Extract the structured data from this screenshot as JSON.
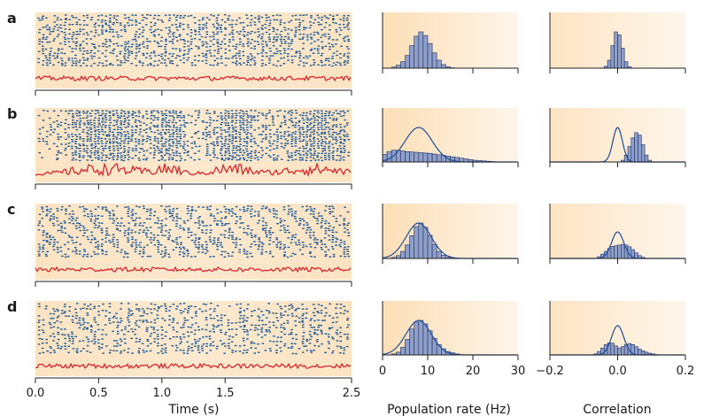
{
  "colors": {
    "spike": "#1d5a9a",
    "rate_trace": "#e0242a",
    "hist_fill": "#8f9fc6",
    "hist_edge": "#1a2f6e",
    "fit_line": "#1d4e98",
    "background_light": "#fdf3e6",
    "background_dark": "#fce0bb",
    "axis": "#222222"
  },
  "panels": [
    {
      "letter": "a"
    },
    {
      "letter": "b"
    },
    {
      "letter": "c"
    },
    {
      "letter": "d"
    }
  ],
  "raster_axis": {
    "xlabel": "Time (s)",
    "xlim": [
      0,
      2.5
    ],
    "ticks": [
      "0.0",
      "0.5",
      "1.0",
      "1.5",
      "2.5"
    ],
    "tick_values": [
      0.0,
      0.5,
      1.0,
      1.5,
      2.5
    ]
  },
  "rate_axis": {
    "xlabel": "Population rate (Hz)",
    "xlim": [
      0,
      30
    ],
    "ticks": [
      "0",
      "10",
      "20",
      "30"
    ],
    "tick_values": [
      0,
      10,
      20,
      30
    ]
  },
  "corr_axis": {
    "xlabel": "Correlation",
    "xlim": [
      -0.2,
      0.2
    ],
    "ticks": [
      "−0.2",
      "0.0",
      "0.2"
    ],
    "tick_values": [
      -0.2,
      0.0,
      0.2
    ]
  },
  "chart_data": [
    {
      "type": "raster",
      "panel": "a",
      "description_key": "asynchronous",
      "time_range_s": [
        0,
        2.5
      ],
      "rate_hist": {
        "type": "bar",
        "bin_width_hz": 1,
        "x": [
          2,
          3,
          4,
          5,
          6,
          7,
          8,
          9,
          10,
          11,
          12,
          13,
          14,
          15
        ],
        "values": [
          0.03,
          0.08,
          0.18,
          0.35,
          0.62,
          0.88,
          1.0,
          0.9,
          0.68,
          0.42,
          0.22,
          0.1,
          0.04,
          0.01
        ],
        "fit": null
      },
      "corr_hist": {
        "type": "bar",
        "x": [
          -0.035,
          -0.025,
          -0.015,
          -0.005,
          0.005,
          0.015,
          0.025,
          0.035
        ],
        "values": [
          0.05,
          0.22,
          0.62,
          1.0,
          0.92,
          0.55,
          0.18,
          0.04
        ],
        "fit": null
      }
    },
    {
      "type": "raster",
      "panel": "b",
      "time_range_s": [
        0,
        2.5
      ],
      "rate_hist": {
        "type": "bar",
        "bin_width_hz": 1,
        "x": [
          0,
          1,
          2,
          3,
          4,
          5,
          6,
          7,
          8,
          9,
          10,
          11,
          12,
          13,
          14,
          15,
          16,
          17,
          18,
          19,
          20,
          21,
          22,
          23,
          24
        ],
        "values": [
          0.22,
          0.3,
          0.34,
          0.34,
          0.32,
          0.3,
          0.29,
          0.28,
          0.27,
          0.26,
          0.25,
          0.23,
          0.21,
          0.19,
          0.17,
          0.15,
          0.13,
          0.11,
          0.09,
          0.07,
          0.05,
          0.04,
          0.03,
          0.02,
          0.01
        ],
        "fit": {
          "mean": 8,
          "sd": 3,
          "peak": 1.0
        }
      },
      "corr_hist": {
        "type": "bar",
        "x": [
          0.015,
          0.025,
          0.035,
          0.045,
          0.055,
          0.065,
          0.075,
          0.085,
          0.095
        ],
        "values": [
          0.05,
          0.2,
          0.45,
          0.7,
          0.85,
          0.78,
          0.5,
          0.2,
          0.05
        ],
        "fit": {
          "mean": 0.0,
          "sd": 0.014,
          "peak": 1.0
        }
      }
    },
    {
      "type": "raster",
      "panel": "c",
      "time_range_s": [
        0,
        2.5
      ],
      "rate_hist": {
        "type": "bar",
        "bin_width_hz": 1,
        "x": [
          2,
          3,
          4,
          5,
          6,
          7,
          8,
          9,
          10,
          11,
          12,
          13,
          14,
          15
        ],
        "values": [
          0.03,
          0.08,
          0.2,
          0.38,
          0.64,
          0.9,
          1.0,
          0.88,
          0.65,
          0.4,
          0.2,
          0.09,
          0.03,
          0.01
        ],
        "fit": {
          "mean": 8,
          "sd": 2.8,
          "peak": 1.0
        }
      },
      "corr_hist": {
        "type": "bar",
        "x": [
          -0.055,
          -0.045,
          -0.035,
          -0.025,
          -0.015,
          -0.005,
          0.005,
          0.015,
          0.025,
          0.035,
          0.045,
          0.055,
          0.065,
          0.075
        ],
        "values": [
          0.05,
          0.12,
          0.2,
          0.28,
          0.34,
          0.36,
          0.38,
          0.4,
          0.38,
          0.33,
          0.25,
          0.16,
          0.08,
          0.03
        ],
        "fit": {
          "mean": 0.0,
          "sd": 0.018,
          "peak": 0.75
        }
      }
    },
    {
      "type": "raster",
      "panel": "d",
      "time_range_s": [
        0,
        2.5
      ],
      "rate_hist": {
        "type": "bar",
        "bin_width_hz": 1,
        "x": [
          2,
          3,
          4,
          5,
          6,
          7,
          8,
          9,
          10,
          11,
          12,
          13,
          14,
          15,
          16,
          17
        ],
        "values": [
          0.03,
          0.08,
          0.22,
          0.45,
          0.75,
          0.95,
          1.0,
          0.9,
          0.7,
          0.48,
          0.3,
          0.18,
          0.1,
          0.06,
          0.03,
          0.01
        ],
        "fit": {
          "mean": 8,
          "sd": 2.8,
          "peak": 1.0
        }
      },
      "corr_hist": {
        "type": "bar",
        "x": [
          -0.065,
          -0.055,
          -0.045,
          -0.035,
          -0.025,
          -0.015,
          -0.005,
          0.005,
          0.015,
          0.025,
          0.035,
          0.045,
          0.055,
          0.065,
          0.075,
          0.085,
          0.095,
          0.105,
          0.115
        ],
        "values": [
          0.03,
          0.1,
          0.2,
          0.3,
          0.35,
          0.34,
          0.26,
          0.2,
          0.24,
          0.3,
          0.33,
          0.3,
          0.24,
          0.17,
          0.12,
          0.08,
          0.05,
          0.03,
          0.01
        ],
        "fit": {
          "mean": 0.0,
          "sd": 0.018,
          "peak": 0.85
        }
      }
    }
  ]
}
